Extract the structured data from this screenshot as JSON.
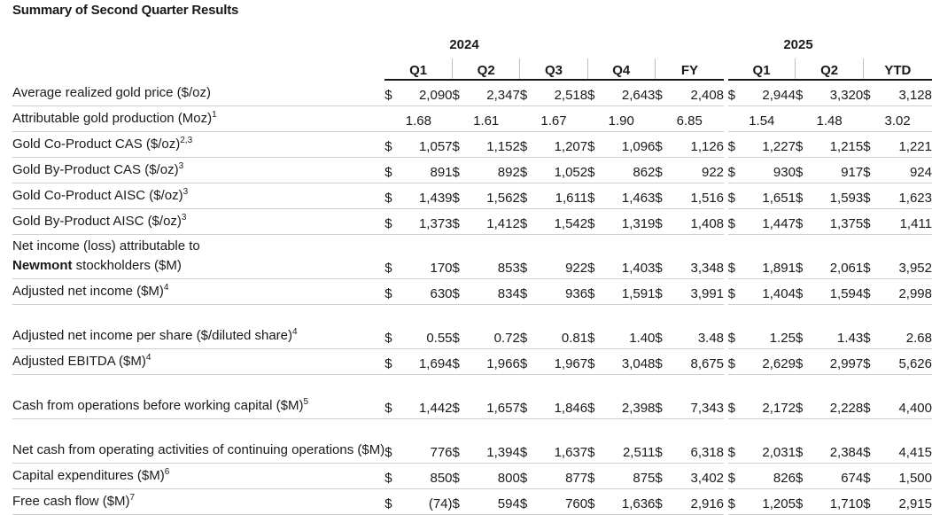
{
  "title": "Summary of Second Quarter Results",
  "year_2024": "2024",
  "year_2025": "2025",
  "periods": [
    "Q1",
    "Q2",
    "Q3",
    "Q4",
    "FY",
    "Q1",
    "Q2",
    "YTD"
  ],
  "rows": [
    {
      "label": "Average realized gold price ($/oz)",
      "sup": "",
      "dollar": true,
      "tall": false,
      "values": [
        "2,090",
        "2,347",
        "2,518",
        "2,643",
        "2,408",
        "2,944",
        "3,320",
        "3,128"
      ]
    },
    {
      "label": "Attributable gold production (Moz)",
      "sup": "1",
      "dollar": false,
      "tall": false,
      "values": [
        "1.68",
        "1.61",
        "1.67",
        "1.90",
        "6.85",
        "1.54",
        "1.48",
        "3.02"
      ]
    },
    {
      "label": "Gold Co-Product CAS ($/oz)",
      "sup": "2,3",
      "dollar": true,
      "tall": false,
      "values": [
        "1,057",
        "1,152",
        "1,207",
        "1,096",
        "1,126",
        "1,227",
        "1,215",
        "1,221"
      ]
    },
    {
      "label": "Gold By-Product CAS ($/oz)",
      "sup": "3",
      "dollar": true,
      "tall": false,
      "values": [
        "891",
        "892",
        "1,052",
        "862",
        "922",
        "930",
        "917",
        "924"
      ]
    },
    {
      "label": "Gold Co-Product AISC ($/oz)",
      "sup": "3",
      "dollar": true,
      "tall": false,
      "values": [
        "1,439",
        "1,562",
        "1,611",
        "1,463",
        "1,516",
        "1,651",
        "1,593",
        "1,623"
      ]
    },
    {
      "label": "Gold By-Product AISC ($/oz)",
      "sup": "3",
      "dollar": true,
      "tall": false,
      "values": [
        "1,373",
        "1,412",
        "1,542",
        "1,319",
        "1,408",
        "1,447",
        "1,375",
        "1,411"
      ]
    },
    {
      "label": "Net income (loss) attributable to",
      "label_bold": "Newmont",
      "label_tail": " stockholders ($M)",
      "sup": "",
      "dollar": true,
      "tall": true,
      "values": [
        "170",
        "853",
        "922",
        "1,403",
        "3,348",
        "1,891",
        "2,061",
        "3,952"
      ]
    },
    {
      "label": "Adjusted net income ($M)",
      "sup": "4",
      "dollar": true,
      "tall": false,
      "values": [
        "630",
        "834",
        "936",
        "1,591",
        "3,991",
        "1,404",
        "1,594",
        "2,998"
      ]
    },
    {
      "label": "Adjusted net income per share ($/diluted share)",
      "sup": "4",
      "dollar": true,
      "tall": true,
      "values": [
        "0.55",
        "0.72",
        "0.81",
        "1.40",
        "3.48",
        "1.25",
        "1.43",
        "2.68"
      ]
    },
    {
      "label": "Adjusted EBITDA ($M)",
      "sup": "4",
      "dollar": true,
      "tall": false,
      "values": [
        "1,694",
        "1,966",
        "1,967",
        "3,048",
        "8,675",
        "2,629",
        "2,997",
        "5,626"
      ]
    },
    {
      "label": "Cash from operations before working capital ($M)",
      "sup": "5",
      "dollar": true,
      "tall": true,
      "values": [
        "1,442",
        "1,657",
        "1,846",
        "2,398",
        "7,343",
        "2,172",
        "2,228",
        "4,400"
      ]
    },
    {
      "label": "Net cash from operating activities of continuing operations ($M)",
      "sup": "",
      "dollar": true,
      "tall": true,
      "values": [
        "776",
        "1,394",
        "1,637",
        "2,511",
        "6,318",
        "2,031",
        "2,384",
        "4,415"
      ]
    },
    {
      "label": "Capital expenditures ($M)",
      "sup": "6",
      "dollar": true,
      "tall": false,
      "values": [
        "850",
        "800",
        "877",
        "875",
        "3,402",
        "826",
        "674",
        "1,500"
      ]
    },
    {
      "label": "Free cash flow ($M)",
      "sup": "7",
      "dollar": true,
      "tall": false,
      "values": [
        "(74)",
        "594",
        "760",
        "1,636",
        "2,916",
        "1,205",
        "1,710",
        "2,915"
      ]
    }
  ],
  "currency_symbol": "$"
}
